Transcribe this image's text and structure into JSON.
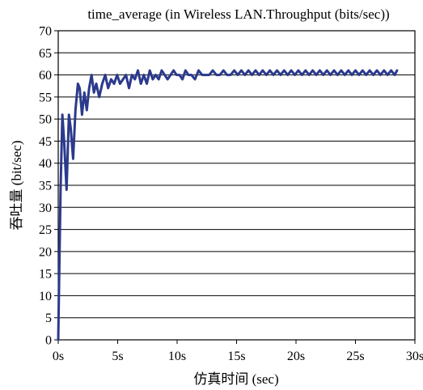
{
  "chart_data": {
    "type": "line",
    "title": "time_average (in Wireless LAN.Throughput (bits/sec))",
    "xlabel": "仿真时间 (sec)",
    "ylabel": "吞吐量 (bit/sec)",
    "xlim": [
      0,
      30
    ],
    "ylim": [
      0,
      70
    ],
    "x_ticks": [
      0,
      5,
      10,
      15,
      20,
      25,
      30
    ],
    "x_tick_labels": [
      "0s",
      "5s",
      "10s",
      "15s",
      "20s",
      "25s",
      "30s"
    ],
    "y_ticks": [
      0,
      5,
      10,
      15,
      20,
      25,
      30,
      35,
      40,
      45,
      50,
      55,
      60,
      65,
      70
    ],
    "y_tick_labels": [
      "0",
      "5",
      "10",
      "15",
      "20",
      "25",
      "30",
      "35",
      "40",
      "45",
      "50",
      "55",
      "60",
      "65",
      "70"
    ],
    "grid": "horizontal",
    "line_color": "#2b3a8c",
    "series": [
      {
        "x": [
          0,
          0.1,
          0.2,
          0.35,
          0.5,
          0.7,
          0.9,
          1.05,
          1.25,
          1.45,
          1.65,
          1.8,
          2.0,
          2.2,
          2.4,
          2.6,
          2.8,
          3.0,
          3.2,
          3.45,
          3.7,
          3.95,
          4.2,
          4.45,
          4.7,
          4.95,
          5.2,
          5.45,
          5.7,
          5.95,
          6.2,
          6.45,
          6.7,
          6.95,
          7.2,
          7.45,
          7.7,
          7.95,
          8.2,
          8.45,
          8.7,
          8.95,
          9.2,
          9.45,
          9.7,
          9.95,
          10.2,
          10.45,
          10.7,
          10.95,
          11.2,
          11.5,
          11.8,
          12.1,
          12.4,
          12.7,
          13.0,
          13.3,
          13.6,
          13.9,
          14.2,
          14.5,
          14.8,
          15.1,
          15.4,
          15.7,
          16.0,
          16.3,
          16.6,
          16.9,
          17.2,
          17.5,
          17.8,
          18.1,
          18.4,
          18.7,
          19.0,
          19.3,
          19.6,
          19.9,
          20.2,
          20.5,
          20.8,
          21.1,
          21.4,
          21.7,
          22.0,
          22.3,
          22.6,
          22.9,
          23.2,
          23.5,
          23.8,
          24.1,
          24.4,
          24.7,
          25.0,
          25.3,
          25.6,
          25.9,
          26.2,
          26.5,
          26.8,
          27.1,
          27.4,
          27.7,
          28.0,
          28.3,
          28.5
        ],
        "y": [
          0,
          18,
          34,
          51,
          45,
          34,
          51,
          48,
          41,
          52,
          58,
          57,
          51,
          56,
          52,
          57,
          60,
          56,
          58,
          55,
          58,
          60,
          57,
          59,
          58,
          60,
          58,
          59,
          60,
          57,
          60,
          59,
          61,
          58,
          60,
          58,
          61,
          59,
          60,
          59,
          61,
          60,
          59,
          60,
          61,
          60,
          60,
          59,
          61,
          60,
          60,
          59,
          61,
          60,
          60,
          60,
          61,
          60,
          60,
          61,
          60,
          60,
          61,
          60,
          61,
          60,
          61,
          60,
          61,
          60,
          61,
          60,
          61,
          60,
          61,
          60,
          61,
          60,
          61,
          60,
          61,
          60,
          61,
          60,
          61,
          60,
          61,
          60,
          61,
          60,
          61,
          60,
          61,
          60,
          61,
          60,
          61,
          60,
          61,
          60,
          61,
          60,
          61,
          60,
          61,
          60,
          61,
          60,
          61
        ]
      }
    ]
  }
}
